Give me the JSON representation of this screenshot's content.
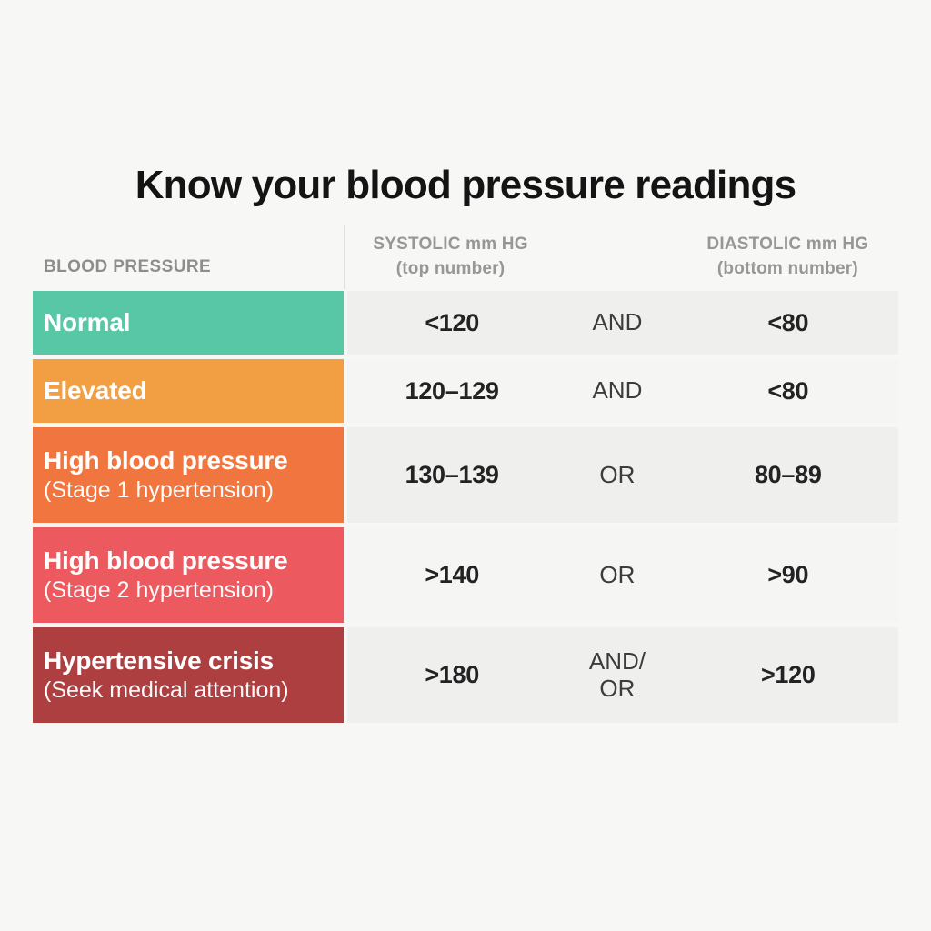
{
  "page": {
    "title": "Know your blood pressure readings",
    "background": "#f7f7f6"
  },
  "colors": {
    "normal": "#58c7a6",
    "elevated": "#f29e42",
    "stage1": "#f0753e",
    "stage2": "#ec5a5f",
    "crisis": "#ad3f41",
    "row_bg_dark": "#efefee",
    "row_bg_light": "#f5f5f4",
    "header_text": "#8d8d8d"
  },
  "table": {
    "headers": {
      "label": "BLOOD PRESSURE",
      "systolic": "SYSTOLIC mm HG",
      "systolic_sub": "(top number)",
      "diastolic": "DIASTOLIC mm HG",
      "diastolic_sub": "(bottom number)"
    },
    "rows": [
      {
        "category": "Normal",
        "subtitle": "",
        "color": "#58c7a6",
        "systolic": "<120",
        "connector": "AND",
        "diastolic": "<80"
      },
      {
        "category": "Elevated",
        "subtitle": "",
        "color": "#f29e42",
        "systolic": "120–129",
        "connector": "AND",
        "diastolic": "<80"
      },
      {
        "category": "High blood pressure",
        "subtitle": "(Stage 1 hypertension)",
        "color": "#f0753e",
        "systolic": "130–139",
        "connector": "OR",
        "diastolic": "80–89"
      },
      {
        "category": "High blood pressure",
        "subtitle": "(Stage 2 hypertension)",
        "color": "#ec5a5f",
        "systolic": ">140",
        "connector": "OR",
        "diastolic": ">90"
      },
      {
        "category": "Hypertensive crisis",
        "subtitle": "(Seek medical attention)",
        "color": "#ad3f41",
        "systolic": ">180",
        "connector": "AND/\nOR",
        "diastolic": ">120"
      }
    ]
  },
  "chart_data": {
    "type": "table",
    "title": "Know your blood pressure readings",
    "columns": [
      "BLOOD PRESSURE",
      "SYSTOLIC mm HG (top number)",
      "connector",
      "DIASTOLIC mm HG (bottom number)"
    ],
    "rows": [
      [
        "Normal",
        "<120",
        "AND",
        "<80"
      ],
      [
        "Elevated",
        "120–129",
        "AND",
        "<80"
      ],
      [
        "High blood pressure (Stage 1 hypertension)",
        "130–139",
        "OR",
        "80–89"
      ],
      [
        "High blood pressure (Stage 2 hypertension)",
        ">140",
        "OR",
        ">90"
      ],
      [
        "Hypertensive crisis (Seek medical attention)",
        ">180",
        "AND/OR",
        ">120"
      ]
    ],
    "row_colors": [
      "#58c7a6",
      "#f29e42",
      "#f0753e",
      "#ec5a5f",
      "#ad3f41"
    ],
    "legend_position": "none",
    "grid": false
  }
}
